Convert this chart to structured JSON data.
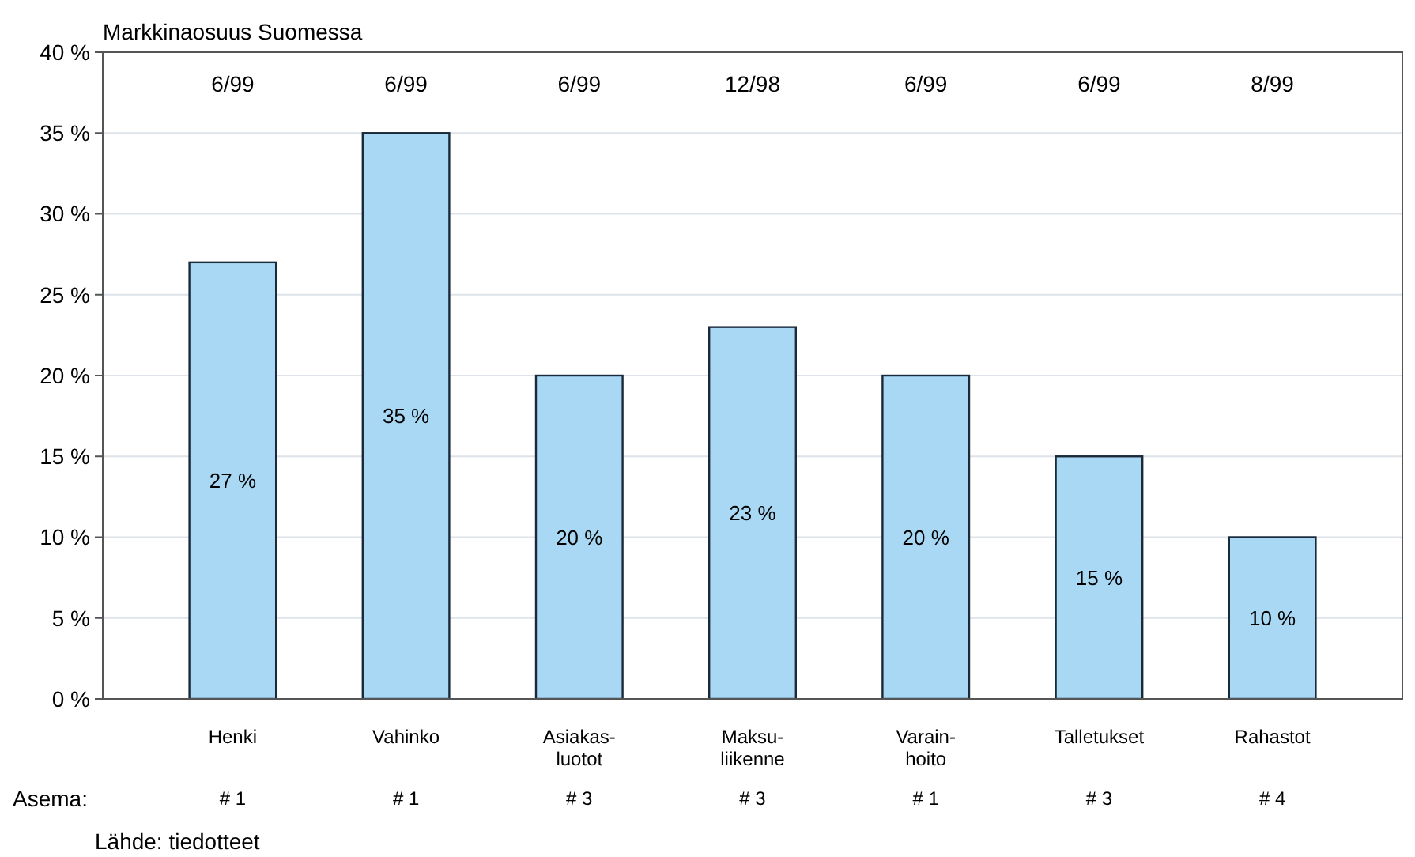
{
  "chart_data": {
    "type": "bar",
    "title": "Markkinaosuus Suomessa",
    "categories": [
      "Henki",
      "Vahinko",
      "Asiakas-\nluotot",
      "Maksu-\nliikenne",
      "Varain-\nhoito",
      "Talletukset",
      "Rahastot"
    ],
    "values": [
      27,
      35,
      20,
      23,
      20,
      15,
      10
    ],
    "color": "#a8d8f4",
    "value_labels": [
      "27 %",
      "35 %",
      "20 %",
      "23 %",
      "20 %",
      "15 %",
      "10 %"
    ],
    "ylim": [
      0,
      40
    ],
    "yticks": [
      {
        "value": 0,
        "label": "0 %"
      },
      {
        "value": 5,
        "label": "5 %"
      },
      {
        "value": 10,
        "label": "10 %"
      },
      {
        "value": 15,
        "label": "15 %"
      },
      {
        "value": 20,
        "label": "20 %"
      },
      {
        "value": 25,
        "label": "25 %"
      },
      {
        "value": 30,
        "label": "30 %"
      },
      {
        "value": 35,
        "label": "35 %"
      },
      {
        "value": 40,
        "label": "40 %"
      }
    ],
    "grid": "y",
    "annotations": [
      "6/99",
      "6/99",
      "6/99",
      "12/98",
      "6/99",
      "6/99",
      "8/99",
      "Asema:",
      "# 1",
      "# 1",
      "# 3",
      "# 3",
      "# 1",
      "# 3",
      "# 4",
      "Lähde: tiedotteet"
    ]
  }
}
